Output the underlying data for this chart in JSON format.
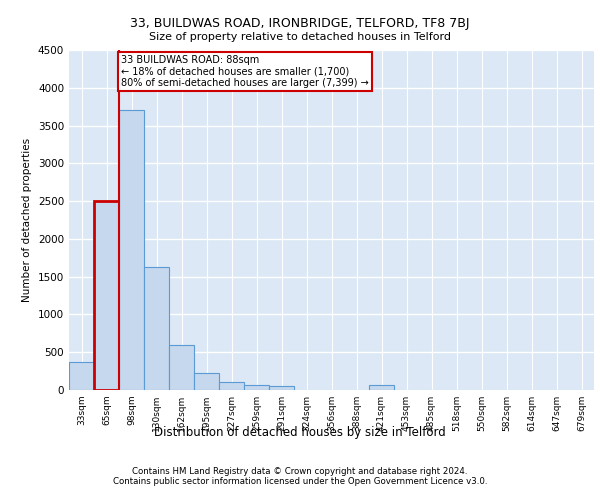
{
  "title1": "33, BUILDWAS ROAD, IRONBRIDGE, TELFORD, TF8 7BJ",
  "title2": "Size of property relative to detached houses in Telford",
  "xlabel": "Distribution of detached houses by size in Telford",
  "ylabel": "Number of detached properties",
  "footnote1": "Contains HM Land Registry data © Crown copyright and database right 2024.",
  "footnote2": "Contains public sector information licensed under the Open Government Licence v3.0.",
  "annotation_line1": "33 BUILDWAS ROAD: 88sqm",
  "annotation_line2": "← 18% of detached houses are smaller (1,700)",
  "annotation_line3": "80% of semi-detached houses are larger (7,399) →",
  "bar_color": "#c5d8ed",
  "bar_edge_color": "#5b9bd5",
  "highlight_bar_edge_color": "#cc0000",
  "annotation_box_color": "#ffffff",
  "annotation_box_edge_color": "#cc0000",
  "vline_color": "#cc0000",
  "background_color": "#dce8f5",
  "grid_color": "#ffffff",
  "categories": [
    "33sqm",
    "65sqm",
    "98sqm",
    "130sqm",
    "162sqm",
    "195sqm",
    "227sqm",
    "259sqm",
    "291sqm",
    "324sqm",
    "356sqm",
    "388sqm",
    "421sqm",
    "453sqm",
    "485sqm",
    "518sqm",
    "550sqm",
    "582sqm",
    "614sqm",
    "647sqm",
    "679sqm"
  ],
  "values": [
    370,
    2500,
    3700,
    1630,
    590,
    220,
    110,
    70,
    50,
    0,
    0,
    0,
    70,
    0,
    0,
    0,
    0,
    0,
    0,
    0,
    0
  ],
  "ylim": [
    0,
    4500
  ],
  "yticks": [
    0,
    500,
    1000,
    1500,
    2000,
    2500,
    3000,
    3500,
    4000,
    4500
  ],
  "highlight_index": 1,
  "vline_x": 1.5
}
